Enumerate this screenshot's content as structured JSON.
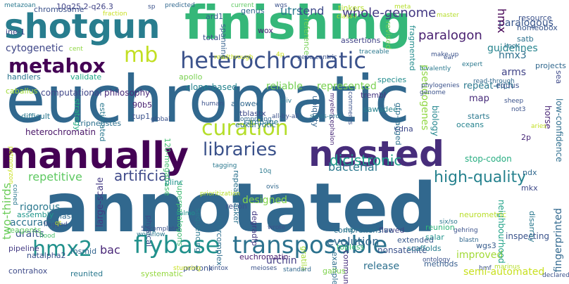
{
  "cloud": {
    "words": [
      {
        "text": "annotated",
        "color": "#31688e"
      },
      {
        "text": "euchromatic",
        "color": "#31688e"
      },
      {
        "text": "finishing",
        "color": "#35b779"
      },
      {
        "text": "shotgun",
        "color": "#287d8e"
      },
      {
        "text": "manually",
        "color": "#440154"
      },
      {
        "text": "nested",
        "color": "#472d7b"
      },
      {
        "text": "heterochromatic",
        "color": "#3b528b"
      },
      {
        "text": "flybase",
        "color": "#21918c"
      },
      {
        "text": "transposable",
        "color": "#2c728e"
      },
      {
        "text": "curation",
        "color": "#b5de2b"
      },
      {
        "text": "metahox",
        "color": "#440154"
      },
      {
        "text": "libraries",
        "color": "#3b528b"
      },
      {
        "text": "whole-genome",
        "color": "#443983"
      },
      {
        "text": "dicistronic",
        "color": "#1f9e89"
      },
      {
        "text": "mb",
        "color": "#c2df23"
      },
      {
        "text": "hmx2",
        "color": "#21918c"
      },
      {
        "text": "high-quality",
        "color": "#26828e"
      },
      {
        "text": "artificial",
        "color": "#3e4989"
      },
      {
        "text": "repetitive",
        "color": "#5ec962"
      },
      {
        "text": "paralogon",
        "color": "#481f70"
      },
      {
        "text": "paralogous",
        "color": "#39568c"
      },
      {
        "text": "guidelines",
        "color": "#25848e"
      },
      {
        "text": "two-thirds",
        "color": "#6ccd5a"
      },
      {
        "text": "bacterial",
        "color": "#2a788e"
      },
      {
        "text": "cytogenetic",
        "color": "#3f4788"
      },
      {
        "text": "hmx",
        "color": "#440154"
      },
      {
        "text": "hmx3",
        "color": "#2d708e"
      },
      {
        "text": "arms",
        "color": "#414487"
      },
      {
        "text": "utrs",
        "color": "#2a788e"
      },
      {
        "text": "tend",
        "color": "#3e4a89"
      },
      {
        "text": "evolution",
        "color": "#31688e"
      },
      {
        "text": "urchin",
        "color": "#433e85"
      },
      {
        "text": "release",
        "color": "#2d708e"
      },
      {
        "text": "improved",
        "color": "#a2da37"
      },
      {
        "text": "designed",
        "color": "#84d44b"
      },
      {
        "text": "bac",
        "color": "#482677"
      },
      {
        "text": "drafts",
        "color": "#3b528b"
      },
      {
        "text": "accuracy",
        "color": "#2c728e"
      },
      {
        "text": "pseudogenes",
        "color": "#90d743"
      },
      {
        "text": "repeat-rich",
        "color": "#2a788e"
      },
      {
        "text": "map",
        "color": "#472c7a"
      },
      {
        "text": "large-scale",
        "color": "#443a83"
      },
      {
        "text": "reliable",
        "color": "#75d054"
      },
      {
        "text": "represented",
        "color": "#7ad151"
      },
      {
        "text": "clone-based",
        "color": "#25838e"
      },
      {
        "text": "computational",
        "color": "#404688"
      },
      {
        "text": "philosophy",
        "color": "#482878"
      },
      {
        "text": "semi-automated",
        "color": "#c8e020"
      },
      {
        "text": "nonsatellite",
        "color": "#3b528b"
      },
      {
        "text": "heterochromatin",
        "color": "#481467"
      },
      {
        "text": "rigorous",
        "color": "#2a788e"
      },
      {
        "text": "fingerprinted",
        "color": "#31688e"
      },
      {
        "text": "low-confidence",
        "color": "#2e6e8e"
      },
      {
        "text": "stop-codon",
        "color": "#27ad81"
      },
      {
        "text": "gfp-tagged",
        "color": "#2d708e"
      },
      {
        "text": "neighbourhood",
        "color": "#1fa187"
      },
      {
        "text": "inspecting",
        "color": "#3a538b"
      },
      {
        "text": "horse",
        "color": "#482475"
      },
      {
        "text": "biology",
        "color": "#24868e"
      },
      {
        "text": "cdna",
        "color": "#3f4889"
      },
      {
        "text": "comprehensive",
        "color": "#2c728e"
      },
      {
        "text": "flawed",
        "color": "#414487"
      },
      {
        "text": "reunion",
        "color": "#31b57b"
      },
      {
        "text": "salar",
        "color": "#20938c"
      },
      {
        "text": "wgs3",
        "color": "#365c8d"
      },
      {
        "text": "disarray",
        "color": "#2a788e"
      },
      {
        "text": "extended",
        "color": "#38598c"
      },
      {
        "text": "scaffolds",
        "color": "#287c8e"
      },
      {
        "text": "topless",
        "color": "#3dbc74"
      },
      {
        "text": "examples",
        "color": "#2e6e8e"
      },
      {
        "text": "community",
        "color": "#472f7d"
      },
      {
        "text": "eukaryotic",
        "color": "#2e6f8e"
      },
      {
        "text": "superparalogons",
        "color": "#3fbc73"
      },
      {
        "text": "tripneustes",
        "color": "#2d708e"
      },
      {
        "text": "120-megabase",
        "color": "#44bf70"
      },
      {
        "text": "estimated",
        "color": "#2a788e"
      },
      {
        "text": "assembly",
        "color": "#1f968b"
      },
      {
        "text": "reagents",
        "color": "#5ec962"
      },
      {
        "text": "blaster",
        "color": "#2f6b8e"
      },
      {
        "text": "pipeline",
        "color": "#443b84"
      },
      {
        "text": "contrahox",
        "color": "#3e4a89"
      },
      {
        "text": "difficult",
        "color": "#2a788e"
      },
      {
        "text": "handlers",
        "color": "#2b758e"
      },
      {
        "text": "chromosome",
        "color": "#3b518b"
      },
      {
        "text": "validate",
        "color": "#21a685"
      },
      {
        "text": "caballus",
        "color": "#a0da39"
      },
      {
        "text": "apollo",
        "color": "#7ad151"
      },
      {
        "text": "strategy",
        "color": "#25ac82"
      },
      {
        "text": "90b5",
        "color": "#482071"
      },
      {
        "text": "tup1",
        "color": "#3b528b"
      },
      {
        "text": "allowed",
        "color": "#31688e"
      },
      {
        "text": "tblastx",
        "color": "#3e4a89"
      },
      {
        "text": "rampage",
        "color": "#2a788e"
      },
      {
        "text": "ubiquity",
        "color": "#32648e"
      },
      {
        "text": "trembl",
        "color": "#453581"
      },
      {
        "text": "species",
        "color": "#228c8d"
      },
      {
        "text": "methods",
        "color": "#365d8d"
      },
      {
        "text": "sawadee",
        "color": "#26828e"
      },
      {
        "text": "recon",
        "color": "#3b528b"
      },
      {
        "text": "degradfp",
        "color": "#443983"
      },
      {
        "text": "plinc",
        "color": "#21918c"
      },
      {
        "text": "physical",
        "color": "#3e4c8a"
      },
      {
        "text": "sequencing",
        "color": "#2a788e"
      },
      {
        "text": "intercomplex",
        "color": "#2e6e8e"
      },
      {
        "text": "gallus",
        "color": "#7fd34e"
      },
      {
        "text": "protonk",
        "color": "#3b528b"
      },
      {
        "text": "euchromatin",
        "color": "#481b6d"
      },
      {
        "text": "systematic",
        "color": "#95d840"
      },
      {
        "text": "reunited",
        "color": "#2a788e"
      },
      {
        "text": "mkx",
        "color": "#3e4989"
      },
      {
        "text": "ndx",
        "color": "#31688e"
      },
      {
        "text": "fosmid",
        "color": "#32648e"
      },
      {
        "text": "natalpha2",
        "color": "#3b528b"
      },
      {
        "text": "flood",
        "color": "#4ac16d"
      },
      {
        "text": "salmo",
        "color": "#21918c"
      },
      {
        "text": "neurometric",
        "color": "#b8de29"
      },
      {
        "text": "repeatmasker",
        "color": "#2c728e"
      },
      {
        "text": "gratila",
        "color": "#a5db36"
      },
      {
        "text": "spanning",
        "color": "#34608d"
      },
      {
        "text": "total",
        "color": "#3b528b"
      },
      {
        "text": "ard1",
        "color": "#355f8d"
      },
      {
        "text": "wox",
        "color": "#482173"
      },
      {
        "text": "genus",
        "color": "#31688e"
      },
      {
        "text": "reference",
        "color": "#75d054"
      },
      {
        "text": "assertions",
        "color": "#414487"
      },
      {
        "text": "tinkers",
        "color": "#b5de2b"
      },
      {
        "text": "revised",
        "color": "#73d056"
      },
      {
        "text": "fragmented",
        "color": "#228c8d"
      },
      {
        "text": "resource",
        "color": "#3b528b"
      },
      {
        "text": "homeobox",
        "color": "#39568c"
      },
      {
        "text": "satb",
        "color": "#2c728e"
      },
      {
        "text": "equus",
        "color": "#3b528b"
      },
      {
        "text": "projects",
        "color": "#31688e"
      },
      {
        "text": "sea",
        "color": "#3e4989"
      },
      {
        "text": "starts",
        "color": "#2a788e"
      },
      {
        "text": "oceans",
        "color": "#25838e"
      },
      {
        "text": "aries",
        "color": "#c2df23"
      },
      {
        "text": "make-up",
        "color": "#3b528b"
      },
      {
        "text": "traceable",
        "color": "#2a788e"
      },
      {
        "text": "ine-1",
        "color": "#3e4989"
      },
      {
        "text": "10q25.2-q26.3",
        "color": "#414487"
      },
      {
        "text": "metazoan",
        "color": "#2a788e"
      },
      {
        "text": "sp",
        "color": "#3b528b"
      },
      {
        "text": "ear",
        "color": "#3b528b"
      },
      {
        "text": "4p",
        "color": "#c8e020"
      },
      {
        "text": "2p",
        "color": "#482878"
      },
      {
        "text": "wgs",
        "color": "#3b528b"
      },
      {
        "text": "current",
        "color": "#5ec962"
      },
      {
        "text": "predicted",
        "color": "#31688e"
      },
      {
        "text": "fraction",
        "color": "#c8e020"
      },
      {
        "text": "class-i",
        "color": "#c2df23"
      },
      {
        "text": "master",
        "color": "#b5de2b"
      },
      {
        "text": "knox",
        "color": "#2c728e"
      },
      {
        "text": "expert",
        "color": "#2a788e"
      },
      {
        "text": "bivalently",
        "color": "#2a788e"
      },
      {
        "text": "phylogenies",
        "color": "#3b528b"
      },
      {
        "text": "read-through",
        "color": "#31688e"
      },
      {
        "text": "cent",
        "color": "#90d743"
      },
      {
        "text": "comments",
        "color": "#3b528b"
      },
      {
        "text": "myelencephalon",
        "color": "#482878"
      },
      {
        "text": "all-by-all",
        "color": "#3b528b"
      },
      {
        "text": "swiss-prot",
        "color": "#2a788e"
      },
      {
        "text": "comprising",
        "color": "#31688e"
      },
      {
        "text": "prioritization",
        "color": "#b5de2b"
      },
      {
        "text": "human",
        "color": "#3b528b"
      },
      {
        "text": "global",
        "color": "#3b528b"
      },
      {
        "text": "c-iv",
        "color": "#2a788e"
      },
      {
        "text": "not3",
        "color": "#3b528b"
      },
      {
        "text": "sheep",
        "color": "#3b528b"
      },
      {
        "text": "ovis",
        "color": "#31688e"
      },
      {
        "text": "wrote",
        "color": "#3b528b"
      },
      {
        "text": "ddt",
        "color": "#2a788e"
      },
      {
        "text": "gehring",
        "color": "#3b528b"
      },
      {
        "text": "blastn",
        "color": "#31688e"
      },
      {
        "text": "six/so",
        "color": "#2a788e"
      },
      {
        "text": "workflow",
        "color": "#2a788e"
      },
      {
        "text": "5'-complete",
        "color": "#3b528b"
      },
      {
        "text": "ontology",
        "color": "#3b528b"
      },
      {
        "text": "standard",
        "color": "#31688e"
      },
      {
        "text": "meioses",
        "color": "#3b528b"
      },
      {
        "text": "stunning",
        "color": "#c8e020"
      },
      {
        "text": "hmf",
        "color": "#3b528b"
      },
      {
        "text": "marinus",
        "color": "#b5de2b"
      },
      {
        "text": "declared",
        "color": "#3b528b"
      },
      {
        "text": "flagged",
        "color": "#3b528b"
      },
      {
        "text": "coined",
        "color": "#2a788e"
      },
      {
        "text": "qt",
        "color": "#c8e020"
      },
      {
        "text": "10q",
        "color": "#2a788e"
      },
      {
        "text": "tagging",
        "color": "#2a788e"
      },
      {
        "text": "pintox",
        "color": "#3b528b"
      },
      {
        "text": "petromyzon",
        "color": "#2a788e"
      },
      {
        "text": "readthrough",
        "color": "#c8e020"
      },
      {
        "text": "gene-centric",
        "color": "#c8e020"
      },
      {
        "text": "meta",
        "color": "#3b528b"
      },
      {
        "text": "genome",
        "color": "#b5de2b"
      },
      {
        "text": "neighbourhood",
        "color": "#3b528b"
      }
    ]
  }
}
